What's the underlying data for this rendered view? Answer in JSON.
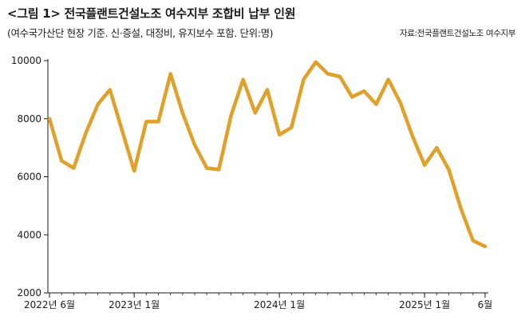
{
  "header": {
    "title": "<그림 1> 전국플랜트건설노조 여수지부 조합비 납부 인원",
    "subtitle": "(여수국가산단 현장 기준. 신·증설, 대정비, 유지보수 포함. 단위:명)",
    "source": "자료:전국플랜트건설노조 여수지부"
  },
  "chart_data": {
    "type": "line",
    "title": "<그림 1> 전국플랜트건설노조 여수지부 조합비 납부 인원",
    "ylabel": "",
    "xlabel": "",
    "ylim": [
      2000,
      10000
    ],
    "yticks": [
      2000,
      4000,
      6000,
      8000,
      10000
    ],
    "grid": false,
    "line_color": "#E0A02A",
    "x_ticks": [
      {
        "index": 0,
        "label": "2022년 6월"
      },
      {
        "index": 7,
        "label": "2023년 1월"
      },
      {
        "index": 19,
        "label": "2024년 1월"
      },
      {
        "index": 31,
        "label": "2025년 1월"
      },
      {
        "index": 36,
        "label": "6월"
      }
    ],
    "series": [
      {
        "values": [
          8000,
          6550,
          6300,
          7500,
          8500,
          9000,
          7600,
          6200,
          7900,
          7900,
          9550,
          8200,
          7100,
          6300,
          6250,
          8100,
          9350,
          8200,
          9000,
          7450,
          7700,
          9350,
          9950,
          9550,
          9450,
          8750,
          8950,
          8500,
          9350,
          8550,
          7400,
          6400,
          7000,
          6250,
          4900,
          3800,
          3600
        ]
      }
    ]
  }
}
